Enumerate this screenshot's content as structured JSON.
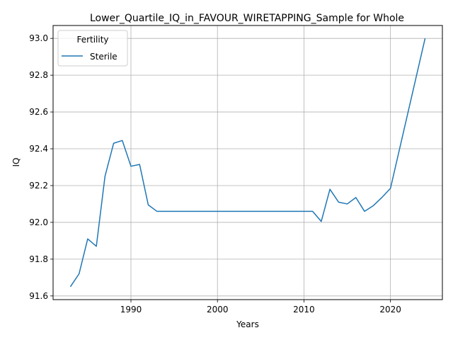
{
  "chart_data": {
    "type": "line",
    "title": "Lower_Quartile_IQ_in_FAVOUR_WIRETAPPING_Sample for Whole",
    "xlabel": "Years",
    "ylabel": "IQ",
    "xlim": [
      1981,
      2026
    ],
    "ylim": [
      91.58,
      93.07
    ],
    "xticks": [
      1990,
      2000,
      2010,
      2020
    ],
    "yticks": [
      91.6,
      91.8,
      92.0,
      92.2,
      92.4,
      92.6,
      92.8,
      93.0
    ],
    "grid": true,
    "legend": {
      "title": "Fertility",
      "placement": "top-left"
    },
    "series": [
      {
        "name": "Sterile",
        "color": "#1f77b4",
        "x": [
          1983,
          1984,
          1985,
          1986,
          1987,
          1988,
          1989,
          1990,
          1991,
          1992,
          1993,
          1994,
          1995,
          1996,
          1997,
          1998,
          1999,
          2000,
          2001,
          2002,
          2003,
          2004,
          2005,
          2006,
          2007,
          2008,
          2009,
          2010,
          2011,
          2012,
          2013,
          2014,
          2015,
          2016,
          2017,
          2018,
          2019,
          2020,
          2024
        ],
        "y": [
          91.65,
          91.72,
          91.91,
          91.87,
          92.25,
          92.43,
          92.445,
          92.305,
          92.315,
          92.095,
          92.06,
          92.06,
          92.06,
          92.06,
          92.06,
          92.06,
          92.06,
          92.06,
          92.06,
          92.06,
          92.06,
          92.06,
          92.06,
          92.06,
          92.06,
          92.06,
          92.06,
          92.06,
          92.06,
          92.005,
          92.18,
          92.11,
          92.1,
          92.135,
          92.06,
          92.09,
          92.135,
          92.185,
          93.0
        ]
      }
    ]
  }
}
